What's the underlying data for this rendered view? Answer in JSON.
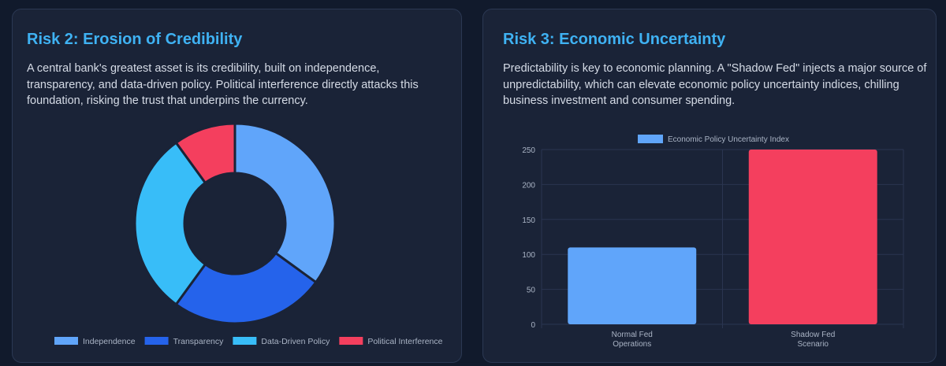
{
  "risk2": {
    "title": "Risk 2: Erosion of Credibility",
    "text": "A central bank's greatest asset is its credibility, built on independence, transparency, and data-driven policy. Political interference directly attacks this foundation, risking the trust that underpins the currency."
  },
  "risk3": {
    "title": "Risk 3: Economic Uncertainty",
    "text": "Predictability is key to economic planning. A \"Shadow Fed\" injects a major source of unpredictability, which can elevate economic policy uncertainty indices, chilling business investment and consumer spending."
  },
  "chart_data": [
    {
      "type": "pie",
      "variant": "doughnut",
      "categories": [
        "Independence",
        "Transparency",
        "Data-Driven Policy",
        "Political Interference"
      ],
      "values": [
        35,
        25,
        30,
        10
      ],
      "colors": [
        "#60a5fa",
        "#2563eb",
        "#38bdf8",
        "#f43f5e"
      ],
      "legend": "bottom"
    },
    {
      "type": "bar",
      "categories": [
        [
          "Normal Fed",
          "Operations"
        ],
        [
          "Shadow Fed",
          "Scenario"
        ]
      ],
      "series": [
        {
          "name": "Economic Policy Uncertainty Index",
          "values": [
            110,
            250
          ]
        }
      ],
      "colors": [
        "#60a5fa",
        "#f43f5e"
      ],
      "ylim": [
        0,
        250
      ],
      "yticks": [
        0,
        50,
        100,
        150,
        200,
        250
      ],
      "grid": true,
      "legend": "top"
    }
  ]
}
